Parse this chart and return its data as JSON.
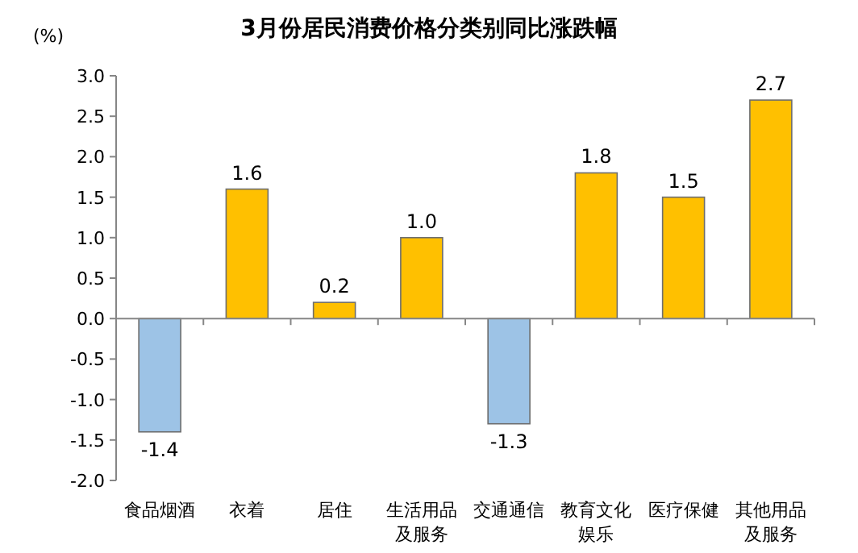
{
  "chart_data": {
    "type": "bar",
    "title": "3月份居民消费价格分类别同比涨跌幅",
    "ylabel": "(%)",
    "categories": [
      "食品烟酒",
      "衣着",
      "居住",
      "生活用品及服务",
      "交通通信",
      "教育文化娱乐",
      "医疗保健",
      "其他用品及服务"
    ],
    "values": [
      -1.4,
      1.6,
      0.2,
      1.0,
      -1.3,
      1.8,
      1.5,
      2.7
    ],
    "colors": [
      "#9dc3e6",
      "#ffc000",
      "#ffc000",
      "#ffc000",
      "#9dc3e6",
      "#ffc000",
      "#ffc000",
      "#ffc000"
    ],
    "value_labels": [
      "-1.4",
      "1.6",
      "0.2",
      "1.0",
      "-1.3",
      "1.8",
      "1.5",
      "2.7"
    ],
    "ylim": [
      -2,
      3
    ],
    "yticks": [
      {
        "value": -2,
        "label": "-2.0"
      },
      {
        "value": -1.5,
        "label": "-1.5"
      },
      {
        "value": -1,
        "label": "-1.0"
      },
      {
        "value": -0.5,
        "label": "-0.5"
      },
      {
        "value": 0,
        "label": "0.0"
      },
      {
        "value": 0.5,
        "label": "0.5"
      },
      {
        "value": 1,
        "label": "1.0"
      },
      {
        "value": 1.5,
        "label": "1.5"
      },
      {
        "value": 2,
        "label": "2.0"
      },
      {
        "value": 2.5,
        "label": "2.5"
      },
      {
        "value": 3,
        "label": "3.0"
      }
    ]
  }
}
